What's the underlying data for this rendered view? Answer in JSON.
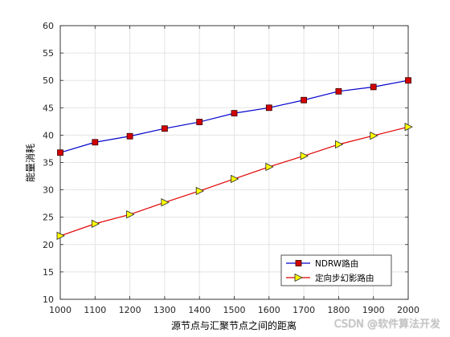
{
  "chart_data": {
    "type": "line",
    "title": "",
    "xlabel": "源节点与汇聚节点之间的距离",
    "ylabel": "能量消耗",
    "xlim": [
      1000,
      2000
    ],
    "ylim": [
      10,
      60
    ],
    "xticks": [
      1000,
      1100,
      1200,
      1300,
      1400,
      1500,
      1600,
      1700,
      1800,
      1900,
      2000
    ],
    "yticks": [
      10,
      15,
      20,
      25,
      30,
      35,
      40,
      45,
      50,
      55,
      60
    ],
    "grid": true,
    "legend": "bottom-right",
    "x": [
      1000,
      1100,
      1200,
      1300,
      1400,
      1500,
      1600,
      1700,
      1800,
      1900,
      2000
    ],
    "series": [
      {
        "name": "NDRW路由",
        "values": [
          36.8,
          38.7,
          39.8,
          41.2,
          42.4,
          44.0,
          45.0,
          46.4,
          48.0,
          48.8,
          50.0
        ],
        "line_color": "#0000cc",
        "marker": "square",
        "marker_color": "#d40000"
      },
      {
        "name": "定向步幻影路由",
        "values": [
          21.6,
          23.8,
          25.5,
          27.7,
          29.8,
          32.0,
          34.2,
          36.2,
          38.3,
          39.9,
          41.5
        ],
        "line_color": "#e00000",
        "marker": "triangle-right",
        "marker_color": "#ffff00"
      }
    ]
  },
  "watermark": "CSDN @软件算法开发"
}
